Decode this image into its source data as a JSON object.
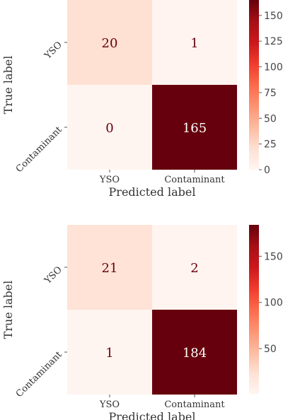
{
  "chart_data": [
    {
      "type": "heatmap",
      "title": "",
      "xlabel": "Predicted label",
      "ylabel": "True label",
      "x_categories": [
        "YSO",
        "Contaminant"
      ],
      "y_categories": [
        "YSO",
        "Contaminant"
      ],
      "values": [
        [
          20,
          1
        ],
        [
          0,
          165
        ]
      ],
      "value_labels": [
        "20",
        "1",
        "0",
        "165"
      ],
      "colormap": "Reds",
      "colorbar": {
        "range": [
          0,
          165
        ],
        "ticks": [
          0,
          25,
          50,
          75,
          100,
          125,
          150
        ],
        "tick_labels": [
          "0",
          "25",
          "50",
          "75",
          "100",
          "125",
          "150"
        ]
      }
    },
    {
      "type": "heatmap",
      "title": "",
      "xlabel": "Predicted label",
      "ylabel": "True label",
      "x_categories": [
        "YSO",
        "Contaminant"
      ],
      "y_categories": [
        "YSO",
        "Contaminant"
      ],
      "values": [
        [
          21,
          2
        ],
        [
          1,
          184
        ]
      ],
      "value_labels": [
        "21",
        "2",
        "1",
        "184"
      ],
      "colormap": "Reds",
      "colorbar": {
        "range": [
          1,
          184
        ],
        "ticks": [
          50,
          100,
          150
        ],
        "tick_labels": [
          "50",
          "100",
          "150"
        ]
      }
    }
  ],
  "colors": {
    "reds_light": "#fff5f0",
    "reds_dark": "#67000d",
    "text_light_cell": "#67000d",
    "text_dark_cell": "#ffffff",
    "axis_text": "#333333"
  }
}
